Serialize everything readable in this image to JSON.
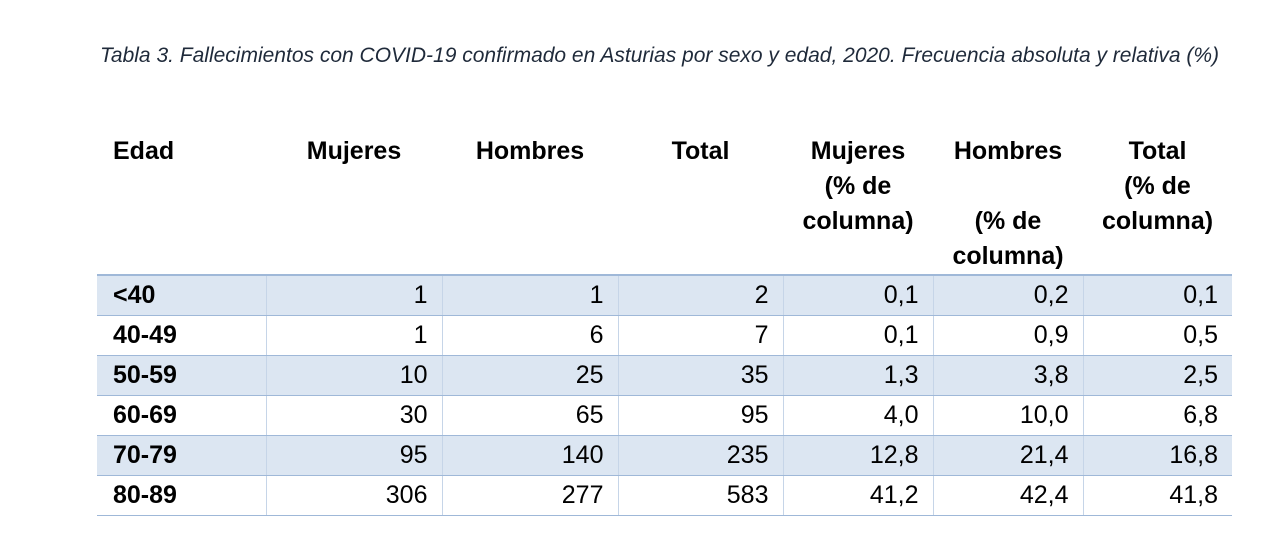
{
  "caption": "Tabla 3. Fallecimientos con COVID-19 confirmado en Asturias por sexo y edad, 2020. Frecuencia absoluta y relativa (%)",
  "headers": {
    "edad": "Edad",
    "mujeres": "Mujeres",
    "hombres": "Hombres",
    "total": "Total",
    "mujeres_pct_1": "Mujeres",
    "mujeres_pct_2": "(% de",
    "mujeres_pct_3": "columna)",
    "hombres_pct_1": "Hombres",
    "hombres_pct_2": "(% de",
    "hombres_pct_3": "columna)",
    "total_pct_1": "Total",
    "total_pct_2": "(% de",
    "total_pct_3": "columna)"
  },
  "rows": [
    [
      "<40",
      "1",
      "1",
      "2",
      "0,1",
      "0,2",
      "0,1"
    ],
    [
      "40-49",
      "1",
      "6",
      "7",
      "0,1",
      "0,9",
      "0,5"
    ],
    [
      "50-59",
      "10",
      "25",
      "35",
      "1,3",
      "3,8",
      "2,5"
    ],
    [
      "60-69",
      "30",
      "65",
      "95",
      "4,0",
      "10,0",
      "6,8"
    ],
    [
      "70-79",
      "95",
      "140",
      "235",
      "12,8",
      "21,4",
      "16,8"
    ],
    [
      "80-89",
      "306",
      "277",
      "583",
      "41,2",
      "42,4",
      "41,8"
    ]
  ],
  "colors": {
    "shaded_row": "#dce6f2",
    "border": "#9fb8d8"
  }
}
